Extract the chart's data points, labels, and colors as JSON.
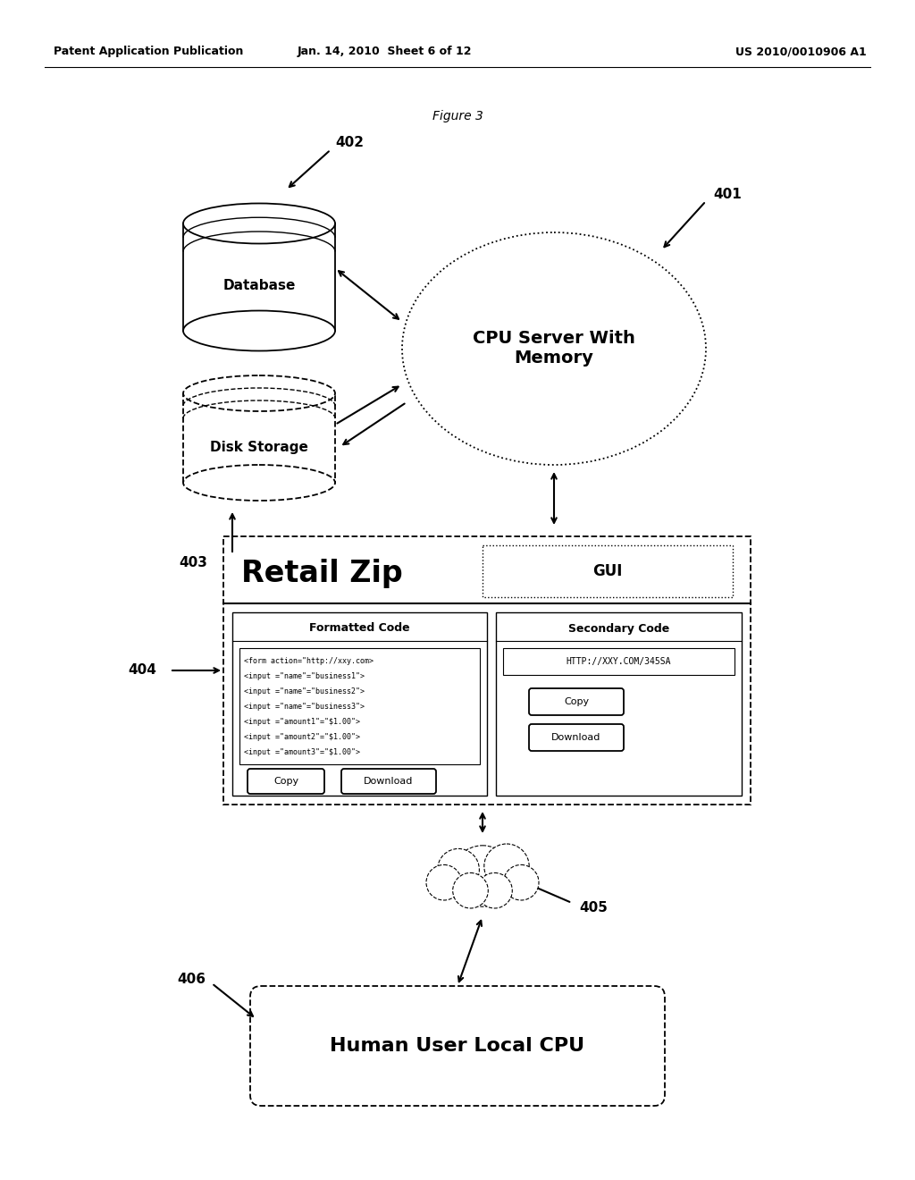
{
  "title": "Figure 3",
  "header_left": "Patent Application Publication",
  "header_mid": "Jan. 14, 2010  Sheet 6 of 12",
  "header_right": "US 2010/0010906 A1",
  "bg_color": "#ffffff",
  "label_401": "401",
  "label_402": "402",
  "label_403": "403",
  "label_404": "404",
  "label_405": "405",
  "label_406": "406",
  "cpu_label": "CPU Server With\nMemory",
  "db_label": "Database",
  "disk_label": "Disk Storage",
  "human_label": "Human User Local CPU",
  "gui_title": "Retail Zip",
  "gui_tab": "GUI",
  "formatted_code_title": "Formatted Code",
  "secondary_code_title": "Secondary Code",
  "formatted_code_lines": [
    "<form action=\"http://xxy.com>",
    "<input =\"name\"=\"business1\">",
    "<input =\"name\"=\"business2\">",
    "<input =\"name\"=\"business3\">",
    "<input =\"amount1\"=\"$1.00\">",
    "<input =\"amount2\"=\"$1.00\">",
    "<input =\"amount3\"=\"$1.00\">"
  ],
  "secondary_code_text": "HTTP://XXY.COM/345SA",
  "copy_btn": "Copy",
  "download_btn": "Download"
}
